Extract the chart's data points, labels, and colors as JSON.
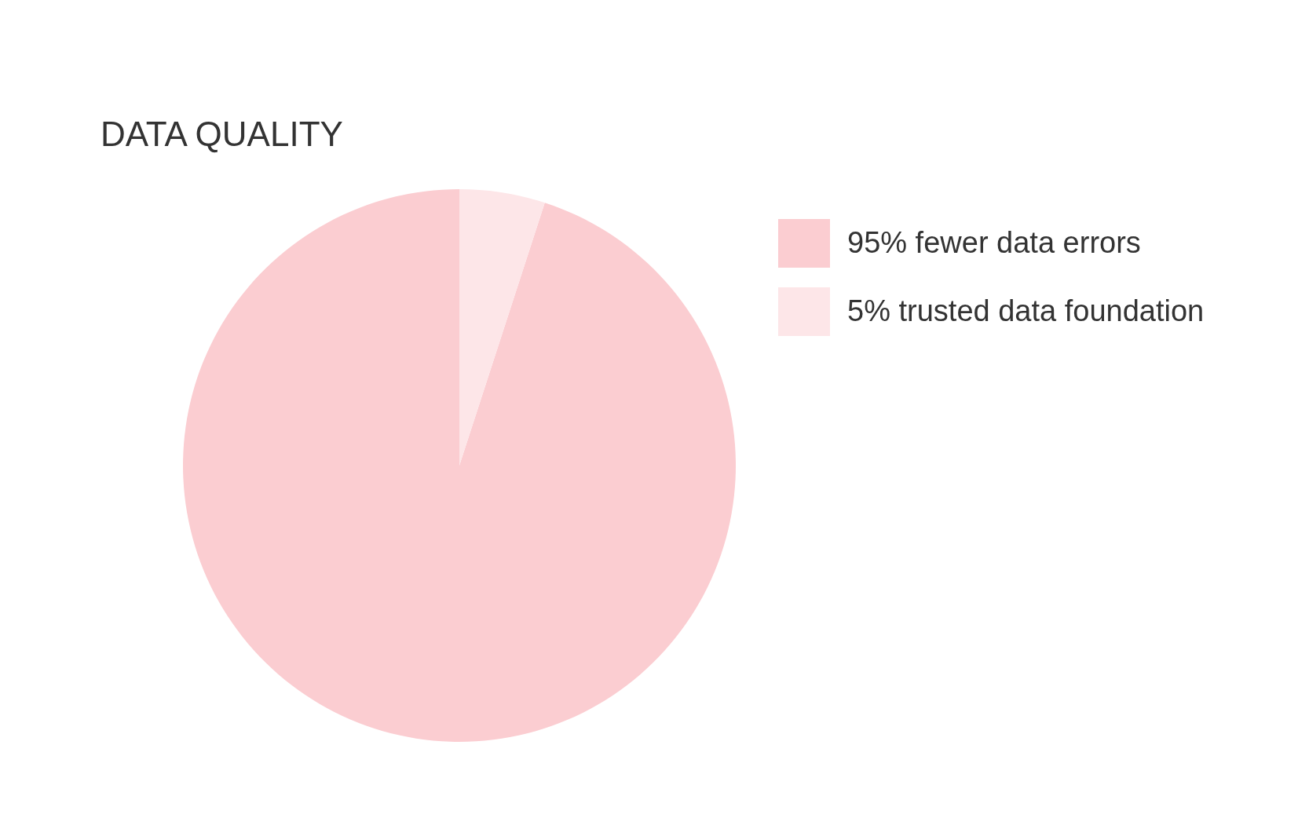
{
  "chart_data": {
    "type": "pie",
    "title": "DATA QUALITY",
    "categories": [
      "95% fewer data errors",
      "5% trusted data foundation"
    ],
    "values": [
      95,
      5
    ],
    "colors": [
      "#fbcdd1",
      "#fde6e8"
    ],
    "legend": "right"
  }
}
